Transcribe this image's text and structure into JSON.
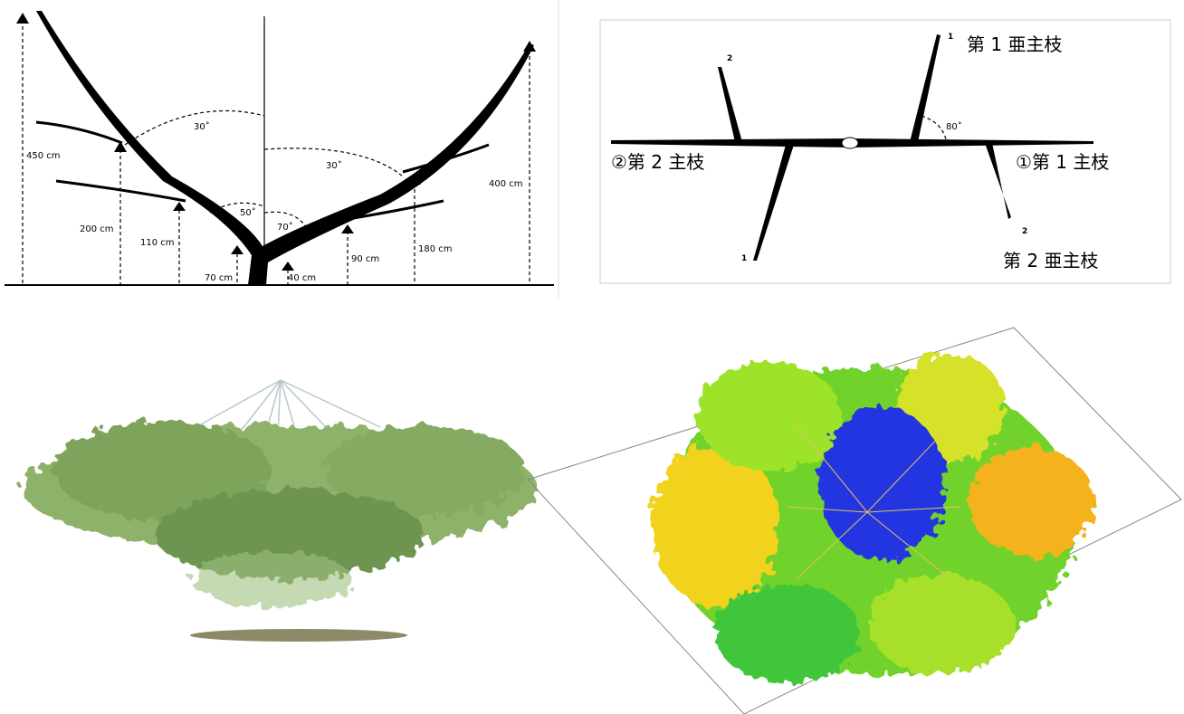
{
  "tree_diagram": {
    "angles": [
      "30˚",
      "30˚",
      "50˚",
      "70˚"
    ],
    "heights": [
      "450 cm",
      "200 cm",
      "110 cm",
      "70 cm",
      "40 cm",
      "90 cm",
      "180 cm",
      "400 cm"
    ]
  },
  "branch_diagram": {
    "labels": [
      "1",
      "第 1 亜主枝",
      "2",
      "80˚",
      "②第 2 主枝",
      "①第 1 主枝",
      "1",
      "2",
      "第 2 亜主枝"
    ]
  }
}
